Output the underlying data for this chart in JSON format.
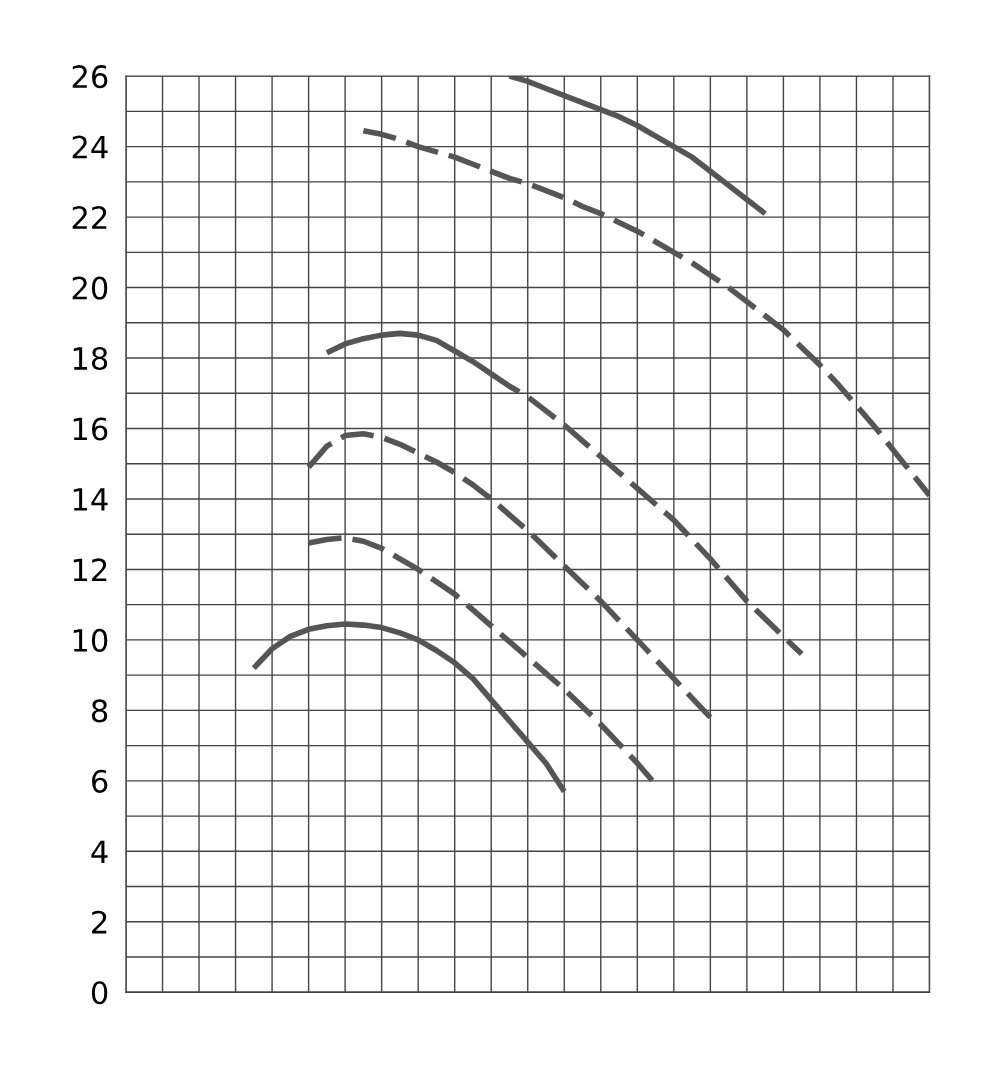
{
  "chart_data": {
    "type": "line",
    "categories": [
      null,
      null,
      null,
      null,
      null,
      null,
      null,
      null,
      null,
      null,
      null,
      null,
      null,
      null,
      null,
      null,
      null,
      null,
      null,
      null,
      null,
      null,
      null,
      null,
      null,
      null,
      null,
      null,
      null,
      null,
      null,
      null,
      null,
      null,
      null,
      null,
      null,
      null,
      null,
      null,
      null,
      null,
      null,
      null,
      null
    ],
    "ylim": [
      0,
      26
    ],
    "yticks": [
      0,
      {
        "value": 1,
        "label": null
      },
      2,
      {
        "value": 3,
        "label": null
      },
      4,
      {
        "value": 5,
        "label": null
      },
      6,
      {
        "value": 7,
        "label": null
      },
      8,
      {
        "value": 9,
        "label": null
      },
      10,
      {
        "value": 11,
        "label": null
      },
      12,
      {
        "value": 13,
        "label": null
      },
      14,
      {
        "value": 15,
        "label": null
      },
      16,
      {
        "value": 17,
        "label": null
      },
      18,
      {
        "value": 19,
        "label": null
      },
      20,
      {
        "value": 21,
        "label": null
      },
      22,
      {
        "value": 23,
        "label": null
      },
      24,
      {
        "value": 25,
        "label": null
      },
      26
    ],
    "grid": true,
    "marker": "none",
    "series": [
      {
        "color": "#555555",
        "line_style": "solid",
        "values": [
          null,
          null,
          null,
          null,
          null,
          null,
          null,
          9.2,
          9.75,
          10.1,
          10.3,
          10.4,
          10.45,
          10.42,
          10.35,
          10.2,
          10.0,
          9.7,
          9.35,
          8.9,
          8.3,
          7.7,
          7.1,
          6.5,
          5.7,
          null,
          null,
          null,
          null,
          null,
          null,
          null,
          null,
          null,
          null,
          null,
          null,
          null,
          null,
          null,
          null,
          null,
          null,
          null,
          null
        ]
      },
      {
        "color": "#555555",
        "line_style": "dashed",
        "values": [
          null,
          null,
          null,
          null,
          null,
          null,
          null,
          null,
          null,
          null,
          12.75,
          12.85,
          12.9,
          12.8,
          12.6,
          12.3,
          12.0,
          11.65,
          11.3,
          10.85,
          10.4,
          9.95,
          9.5,
          9.05,
          8.6,
          8.1,
          7.6,
          7.05,
          6.5,
          5.9,
          null,
          null,
          null,
          null,
          null,
          null,
          null,
          null,
          null,
          null,
          null,
          null,
          null,
          null,
          null
        ]
      },
      {
        "color": "#555555",
        "line_style": "dashed",
        "values": [
          null,
          null,
          null,
          null,
          null,
          null,
          null,
          null,
          null,
          null,
          14.9,
          15.5,
          15.8,
          15.85,
          15.75,
          15.55,
          15.3,
          15.05,
          14.75,
          14.4,
          14.0,
          13.55,
          13.1,
          12.6,
          12.1,
          11.6,
          11.1,
          10.55,
          10.0,
          9.45,
          8.9,
          8.35,
          7.8,
          null,
          null,
          null,
          null,
          null,
          null,
          null,
          null,
          null,
          null,
          null,
          null
        ]
      },
      {
        "color": "#555555",
        "line_style": "solid",
        "values": [
          null,
          null,
          null,
          null,
          null,
          null,
          null,
          null,
          null,
          null,
          null,
          18.15,
          18.4,
          18.55,
          18.65,
          18.7,
          18.65,
          18.5,
          18.2,
          17.9,
          17.55,
          null,
          null,
          null,
          null,
          null,
          null,
          null,
          null,
          null,
          null,
          null,
          null,
          null,
          null,
          null,
          null,
          null,
          null,
          null,
          null,
          null,
          null,
          null,
          null
        ]
      },
      {
        "color": "#555555",
        "line_style": "dashed",
        "values": [
          null,
          null,
          null,
          null,
          null,
          null,
          null,
          null,
          null,
          null,
          null,
          null,
          null,
          null,
          null,
          null,
          null,
          null,
          null,
          null,
          17.55,
          17.2,
          16.9,
          16.5,
          16.1,
          15.65,
          15.2,
          14.75,
          14.3,
          13.85,
          13.4,
          12.85,
          12.3,
          11.7,
          11.1,
          10.6,
          10.1,
          9.6,
          null,
          null,
          null,
          null,
          null,
          null,
          null
        ]
      },
      {
        "color": "#555555",
        "line_style": "dashed",
        "values": [
          null,
          null,
          null,
          null,
          null,
          null,
          null,
          null,
          null,
          null,
          null,
          null,
          null,
          24.45,
          24.35,
          24.2,
          24.0,
          23.85,
          23.7,
          23.5,
          23.3,
          23.1,
          22.95,
          22.75,
          22.55,
          22.3,
          22.1,
          21.85,
          21.6,
          21.3,
          21.0,
          20.7,
          20.35,
          20.0,
          19.6,
          19.2,
          18.8,
          18.3,
          17.8,
          17.25,
          16.65,
          16.05,
          15.4,
          14.75,
          14.1
        ]
      },
      {
        "color": "#555555",
        "line_style": "solid",
        "values": [
          null,
          null,
          null,
          null,
          null,
          null,
          null,
          null,
          null,
          null,
          null,
          null,
          null,
          null,
          null,
          null,
          null,
          null,
          null,
          null,
          null,
          26.0,
          25.85,
          25.65,
          25.45,
          25.25,
          25.05,
          24.85,
          24.6,
          24.3,
          24.0,
          23.7,
          23.3,
          22.9,
          22.5,
          22.1,
          null,
          null,
          null,
          null,
          null,
          null,
          null,
          null,
          null
        ]
      }
    ]
  }
}
